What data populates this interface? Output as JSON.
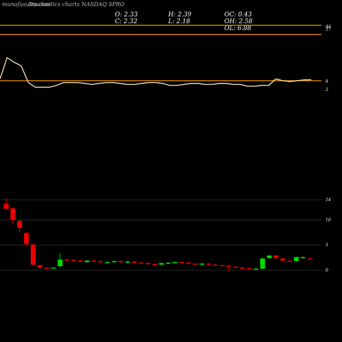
{
  "header": {
    "watermark": "munafasutra.com",
    "title": "Stochastics charts NASDAQ SPRO"
  },
  "stats": {
    "open": "O: 2.33",
    "high": "H: 2.39",
    "oc": "OC: 0.43",
    "close": "C: 2.32",
    "low": "L: 2.18",
    "oh": "OH: 2.58",
    "ol": "OL: 6.88"
  },
  "colors": {
    "background": "#000000",
    "reference_line": "#ff9900",
    "stochastic_line": "#f5deb3",
    "up_candle": "#00dd00",
    "down_candle": "#ee0000",
    "grid": "#333333"
  },
  "chart_data": [
    {
      "type": "line",
      "title": "",
      "ylim": [
        0,
        100
      ],
      "yticks": [
        "44",
        "37",
        "8",
        "2"
      ],
      "reference_lines": [
        {
          "label": "44",
          "value": 80
        },
        {
          "label": "37",
          "value": 70
        },
        {
          "label": "8",
          "value": 20
        }
      ],
      "series": [
        {
          "values": [
            22,
            45,
            40,
            36,
            18,
            13,
            13,
            13,
            15,
            18,
            18,
            18,
            17,
            16,
            17,
            18,
            18,
            17,
            16,
            16,
            17,
            18,
            18,
            17,
            15,
            15,
            16,
            17,
            17,
            16,
            16,
            17,
            17,
            16,
            16,
            14,
            14,
            15,
            15,
            22,
            20,
            19,
            20,
            21,
            21
          ]
        }
      ]
    },
    {
      "type": "candlestick",
      "title": "",
      "ylim": [
        0,
        14
      ],
      "yticks": [
        14,
        10,
        5,
        0
      ],
      "candles": [
        {
          "o": 13.2,
          "h": 14.3,
          "l": 12.0,
          "c": 12.2
        },
        {
          "o": 12.3,
          "h": 12.5,
          "l": 9.0,
          "c": 10.0
        },
        {
          "o": 9.8,
          "h": 9.8,
          "l": 7.5,
          "c": 8.4
        },
        {
          "o": 7.4,
          "h": 7.6,
          "l": 4.8,
          "c": 5.2
        },
        {
          "o": 5.1,
          "h": 5.2,
          "l": 1.0,
          "c": 1.1
        },
        {
          "o": 1.0,
          "h": 1.0,
          "l": 0.4,
          "c": 0.5
        },
        {
          "o": 0.5,
          "h": 0.5,
          "l": 0.3,
          "c": 0.4
        },
        {
          "o": 0.4,
          "h": 0.5,
          "l": 0.3,
          "c": 0.5
        },
        {
          "o": 0.8,
          "h": 3.3,
          "l": 0.6,
          "c": 2.1
        },
        {
          "o": 2.1,
          "h": 2.2,
          "l": 1.9,
          "c": 2.0
        },
        {
          "o": 2.0,
          "h": 2.1,
          "l": 1.8,
          "c": 1.9
        },
        {
          "o": 1.9,
          "h": 2.0,
          "l": 1.6,
          "c": 1.7
        },
        {
          "o": 1.6,
          "h": 2.0,
          "l": 1.5,
          "c": 1.9
        },
        {
          "o": 1.9,
          "h": 2.0,
          "l": 1.7,
          "c": 1.8
        },
        {
          "o": 1.8,
          "h": 1.9,
          "l": 1.5,
          "c": 1.6
        },
        {
          "o": 1.5,
          "h": 1.7,
          "l": 1.4,
          "c": 1.6
        },
        {
          "o": 1.6,
          "h": 1.9,
          "l": 1.5,
          "c": 1.8
        },
        {
          "o": 1.8,
          "h": 1.9,
          "l": 1.5,
          "c": 1.6
        },
        {
          "o": 1.5,
          "h": 1.8,
          "l": 1.4,
          "c": 1.7
        },
        {
          "o": 1.7,
          "h": 1.8,
          "l": 1.4,
          "c": 1.5
        },
        {
          "o": 1.5,
          "h": 1.6,
          "l": 1.3,
          "c": 1.4
        },
        {
          "o": 1.4,
          "h": 1.5,
          "l": 1.1,
          "c": 1.2
        },
        {
          "o": 1.2,
          "h": 1.3,
          "l": 1.0,
          "c": 1.1
        },
        {
          "o": 1.1,
          "h": 1.5,
          "l": 1.0,
          "c": 1.4
        },
        {
          "o": 1.4,
          "h": 1.6,
          "l": 1.2,
          "c": 1.5
        },
        {
          "o": 1.5,
          "h": 1.7,
          "l": 1.3,
          "c": 1.6
        },
        {
          "o": 1.6,
          "h": 1.7,
          "l": 1.4,
          "c": 1.5
        },
        {
          "o": 1.5,
          "h": 1.6,
          "l": 1.2,
          "c": 1.3
        },
        {
          "o": 1.3,
          "h": 1.4,
          "l": 1.1,
          "c": 1.2
        },
        {
          "o": 1.2,
          "h": 1.4,
          "l": 1.0,
          "c": 1.3
        },
        {
          "o": 1.3,
          "h": 1.4,
          "l": 1.0,
          "c": 1.1
        },
        {
          "o": 1.1,
          "h": 1.2,
          "l": 0.9,
          "c": 1.0
        },
        {
          "o": 1.0,
          "h": 1.1,
          "l": 0.8,
          "c": 0.9
        },
        {
          "o": 0.9,
          "h": 1.0,
          "l": -0.3,
          "c": 0.7
        },
        {
          "o": 0.7,
          "h": 0.8,
          "l": 0.4,
          "c": 0.5
        },
        {
          "o": 0.5,
          "h": 0.6,
          "l": 0.3,
          "c": 0.4
        },
        {
          "o": 0.4,
          "h": 0.5,
          "l": 0.2,
          "c": 0.3
        },
        {
          "o": 0.3,
          "h": 0.4,
          "l": 0.2,
          "c": 0.3
        },
        {
          "o": 0.3,
          "h": 2.5,
          "l": 0.3,
          "c": 2.3
        },
        {
          "o": 2.4,
          "h": 3.0,
          "l": 2.3,
          "c": 2.9
        },
        {
          "o": 2.9,
          "h": 3.0,
          "l": 2.2,
          "c": 2.4
        },
        {
          "o": 2.3,
          "h": 2.4,
          "l": 1.8,
          "c": 1.9
        },
        {
          "o": 1.9,
          "h": 2.0,
          "l": 1.7,
          "c": 1.8
        },
        {
          "o": 1.8,
          "h": 2.7,
          "l": 1.8,
          "c": 2.6
        },
        {
          "o": 2.5,
          "h": 2.7,
          "l": 2.3,
          "c": 2.6
        },
        {
          "o": 2.33,
          "h": 2.39,
          "l": 2.18,
          "c": 2.32
        }
      ]
    }
  ]
}
